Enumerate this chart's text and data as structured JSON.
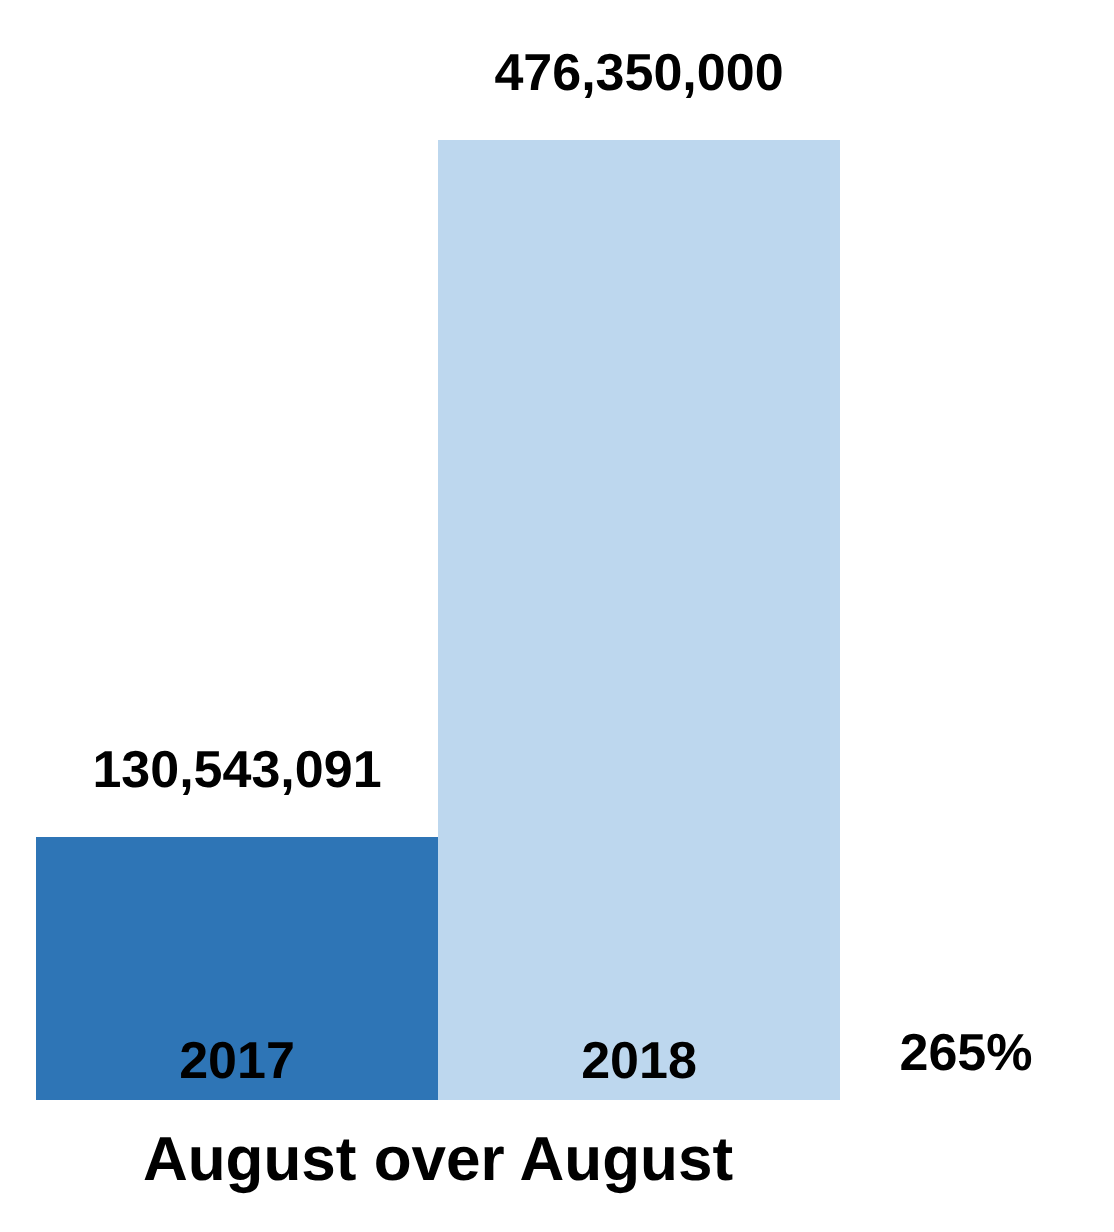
{
  "chart_data": {
    "type": "bar",
    "title": "August over August",
    "categories": [
      "2017",
      "2018"
    ],
    "values": [
      130543091,
      476350000
    ],
    "colors": [
      "#2e75b6",
      "#bdd7ee"
    ],
    "value_labels": [
      "130,543,091",
      "476,350,000"
    ],
    "annotations": [
      "265%"
    ]
  }
}
